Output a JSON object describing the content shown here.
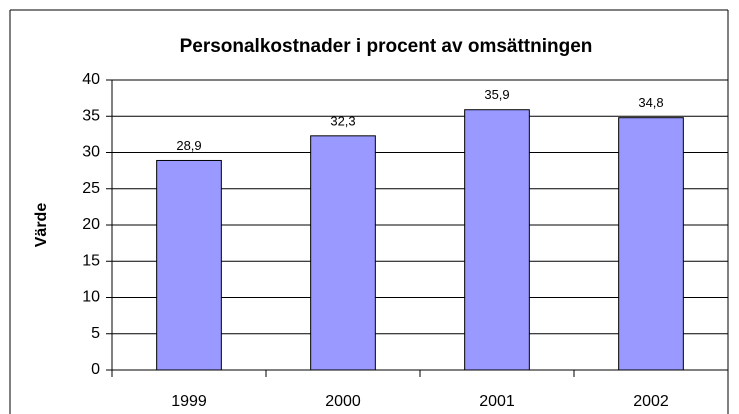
{
  "chart_data": {
    "type": "bar",
    "title": "Personalkostnader i procent av omsättningen",
    "y_label": "Värde",
    "categories": [
      "1999",
      "2000",
      "2001",
      "2002"
    ],
    "values": [
      28.9,
      32.3,
      35.9,
      34.8
    ],
    "value_labels": [
      "28,9",
      "32,3",
      "35,9",
      "34,8"
    ],
    "color": "#9999ff",
    "ylim": [
      0,
      40
    ],
    "yticks": [
      0,
      5,
      10,
      15,
      20,
      25,
      30,
      35,
      40
    ],
    "grid": true
  }
}
